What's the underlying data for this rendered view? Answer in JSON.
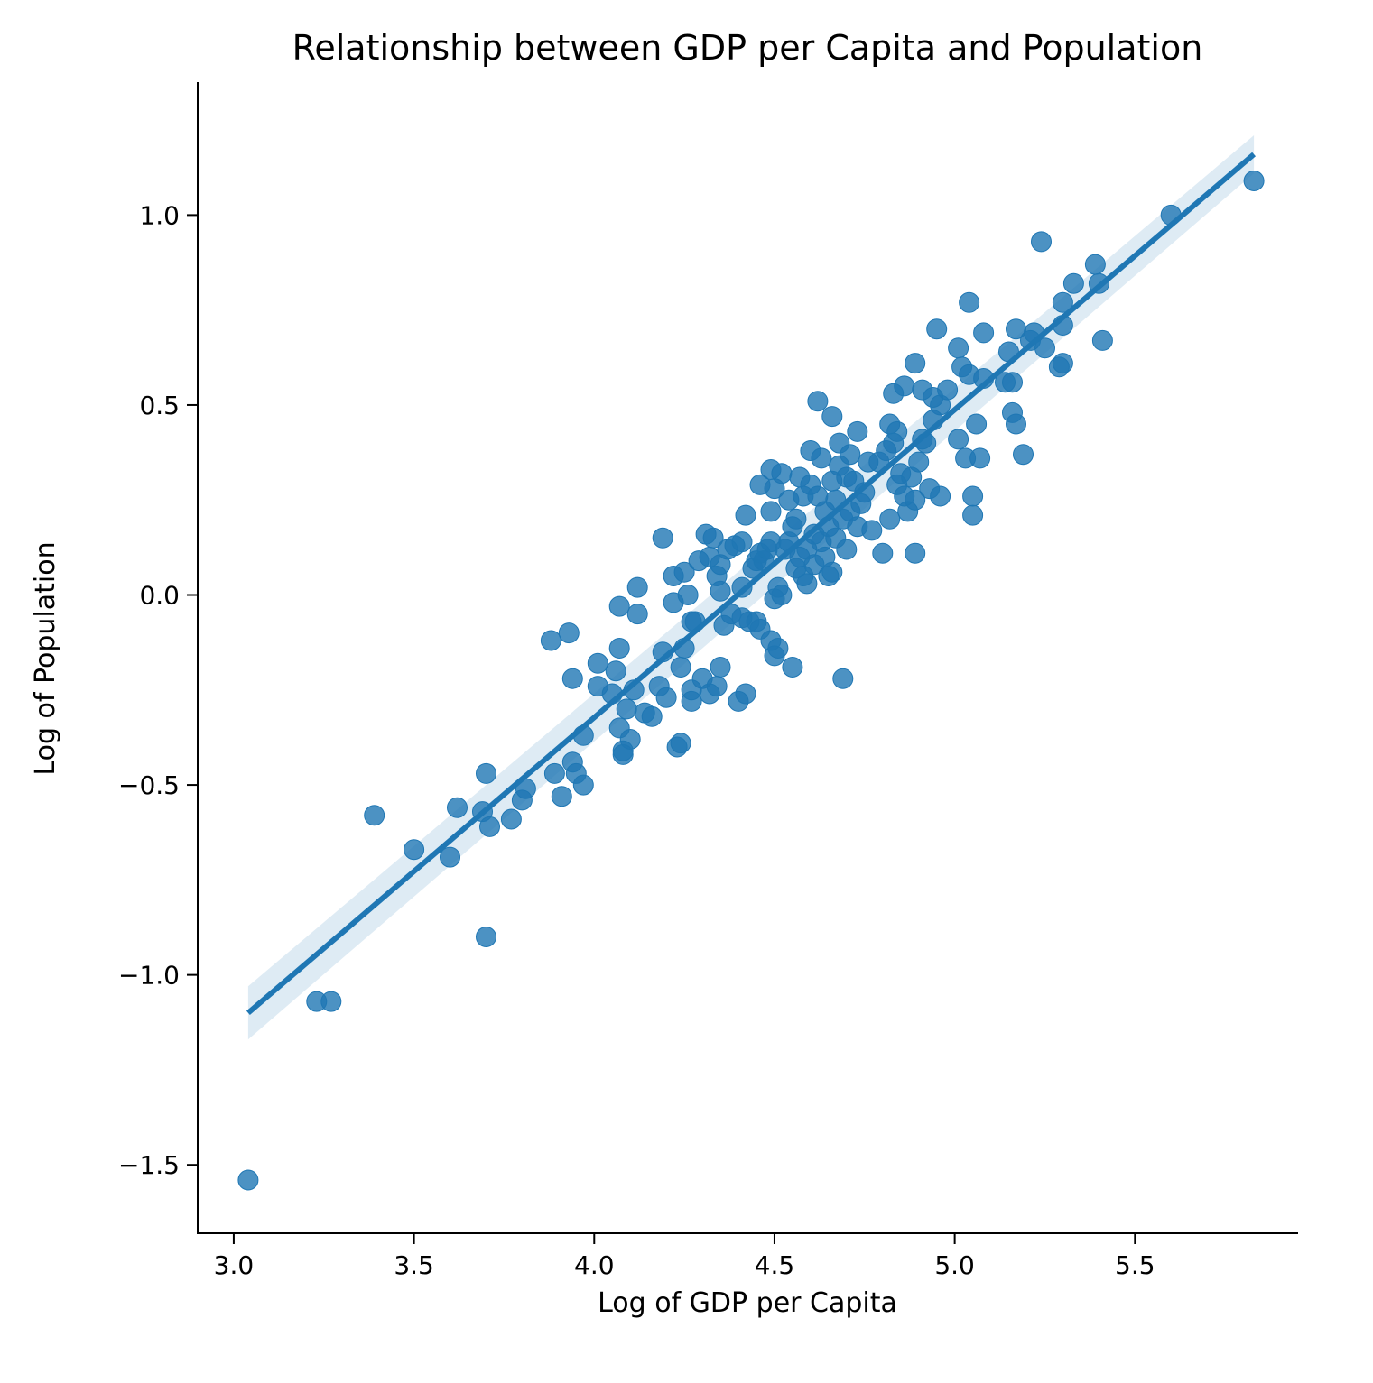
{
  "chart_data": {
    "type": "scatter",
    "title": "Relationship between GDP per Capita and Population",
    "xlabel": "Log of GDP per Capita",
    "ylabel": "Log of Population",
    "xlim": [
      2.9,
      5.95
    ],
    "ylim": [
      -1.68,
      1.35
    ],
    "x_ticks": [
      3.0,
      3.5,
      4.0,
      4.5,
      5.0,
      5.5
    ],
    "x_tick_labels": [
      "3.0",
      "3.5",
      "4.0",
      "4.5",
      "5.0",
      "5.5"
    ],
    "y_ticks": [
      -1.5,
      -1.0,
      -0.5,
      0.0,
      0.5,
      1.0
    ],
    "y_tick_labels": [
      "−1.5",
      "−1.0",
      "−0.5",
      "0.0",
      "0.5",
      "1.0"
    ],
    "grid": false,
    "legend": "none",
    "colors": {
      "points": "#1f77b4",
      "line": "#1f77b4",
      "band": "#1f77b4"
    },
    "regression": {
      "x_range": [
        3.04,
        5.83
      ],
      "y_range": [
        -1.1,
        1.16
      ],
      "ci_upper": [
        -1.03,
        1.21
      ],
      "ci_lower": [
        -1.17,
        1.11
      ]
    },
    "points": [
      [
        3.04,
        -1.54
      ],
      [
        3.23,
        -1.07
      ],
      [
        3.27,
        -1.07
      ],
      [
        3.39,
        -0.58
      ],
      [
        3.5,
        -0.67
      ],
      [
        3.6,
        -0.69
      ],
      [
        3.62,
        -0.56
      ],
      [
        3.69,
        -0.57
      ],
      [
        3.7,
        -0.47
      ],
      [
        3.7,
        -0.9
      ],
      [
        3.71,
        -0.61
      ],
      [
        3.77,
        -0.59
      ],
      [
        3.8,
        -0.54
      ],
      [
        3.81,
        -0.51
      ],
      [
        3.88,
        -0.12
      ],
      [
        3.89,
        -0.47
      ],
      [
        3.91,
        -0.53
      ],
      [
        3.93,
        -0.1
      ],
      [
        3.94,
        -0.22
      ],
      [
        3.94,
        -0.44
      ],
      [
        3.95,
        -0.47
      ],
      [
        3.97,
        -0.5
      ],
      [
        3.97,
        -0.37
      ],
      [
        4.01,
        -0.18
      ],
      [
        4.01,
        -0.24
      ],
      [
        4.05,
        -0.26
      ],
      [
        4.06,
        -0.2
      ],
      [
        4.07,
        -0.03
      ],
      [
        4.07,
        -0.14
      ],
      [
        4.07,
        -0.35
      ],
      [
        4.08,
        -0.41
      ],
      [
        4.08,
        -0.42
      ],
      [
        4.09,
        -0.3
      ],
      [
        4.1,
        -0.38
      ],
      [
        4.11,
        -0.25
      ],
      [
        4.12,
        -0.05
      ],
      [
        4.12,
        0.02
      ],
      [
        4.14,
        -0.31
      ],
      [
        4.16,
        -0.32
      ],
      [
        4.18,
        -0.24
      ],
      [
        4.19,
        -0.15
      ],
      [
        4.19,
        0.15
      ],
      [
        4.2,
        -0.27
      ],
      [
        4.22,
        0.05
      ],
      [
        4.22,
        -0.02
      ],
      [
        4.23,
        -0.4
      ],
      [
        4.24,
        -0.39
      ],
      [
        4.24,
        -0.19
      ],
      [
        4.25,
        -0.14
      ],
      [
        4.25,
        0.06
      ],
      [
        4.26,
        0.0
      ],
      [
        4.27,
        -0.28
      ],
      [
        4.27,
        -0.25
      ],
      [
        4.27,
        -0.07
      ],
      [
        4.28,
        -0.07
      ],
      [
        4.29,
        0.09
      ],
      [
        4.3,
        -0.22
      ],
      [
        4.31,
        0.16
      ],
      [
        4.32,
        0.1
      ],
      [
        4.32,
        -0.26
      ],
      [
        4.33,
        0.15
      ],
      [
        4.34,
        0.05
      ],
      [
        4.34,
        -0.24
      ],
      [
        4.35,
        -0.19
      ],
      [
        4.35,
        0.08
      ],
      [
        4.35,
        0.01
      ],
      [
        4.36,
        -0.08
      ],
      [
        4.37,
        0.12
      ],
      [
        4.38,
        -0.05
      ],
      [
        4.39,
        0.13
      ],
      [
        4.4,
        -0.28
      ],
      [
        4.41,
        -0.06
      ],
      [
        4.41,
        0.02
      ],
      [
        4.41,
        0.14
      ],
      [
        4.42,
        0.21
      ],
      [
        4.42,
        -0.26
      ],
      [
        4.43,
        -0.07
      ],
      [
        4.44,
        0.07
      ],
      [
        4.45,
        0.09
      ],
      [
        4.45,
        -0.07
      ],
      [
        4.46,
        0.11
      ],
      [
        4.46,
        -0.09
      ],
      [
        4.46,
        0.29
      ],
      [
        4.47,
        0.09
      ],
      [
        4.48,
        0.12
      ],
      [
        4.49,
        0.33
      ],
      [
        4.49,
        0.22
      ],
      [
        4.49,
        0.14
      ],
      [
        4.49,
        -0.12
      ],
      [
        4.5,
        -0.01
      ],
      [
        4.5,
        -0.16
      ],
      [
        4.5,
        0.28
      ],
      [
        4.51,
        0.02
      ],
      [
        4.51,
        -0.14
      ],
      [
        4.52,
        0.32
      ],
      [
        4.52,
        0.0
      ],
      [
        4.53,
        0.12
      ],
      [
        4.54,
        0.25
      ],
      [
        4.54,
        0.14
      ],
      [
        4.55,
        -0.19
      ],
      [
        4.55,
        0.18
      ],
      [
        4.56,
        0.07
      ],
      [
        4.56,
        0.2
      ],
      [
        4.57,
        0.1
      ],
      [
        4.57,
        0.31
      ],
      [
        4.58,
        0.26
      ],
      [
        4.58,
        0.05
      ],
      [
        4.59,
        0.03
      ],
      [
        4.59,
        0.12
      ],
      [
        4.6,
        0.38
      ],
      [
        4.6,
        0.29
      ],
      [
        4.61,
        0.16
      ],
      [
        4.61,
        0.08
      ],
      [
        4.62,
        0.51
      ],
      [
        4.62,
        0.26
      ],
      [
        4.63,
        0.14
      ],
      [
        4.63,
        0.36
      ],
      [
        4.64,
        0.1
      ],
      [
        4.64,
        0.22
      ],
      [
        4.65,
        0.05
      ],
      [
        4.65,
        0.18
      ],
      [
        4.66,
        0.47
      ],
      [
        4.66,
        0.3
      ],
      [
        4.66,
        0.06
      ],
      [
        4.67,
        0.25
      ],
      [
        4.67,
        0.15
      ],
      [
        4.68,
        0.4
      ],
      [
        4.68,
        0.34
      ],
      [
        4.69,
        0.2
      ],
      [
        4.69,
        -0.22
      ],
      [
        4.7,
        0.31
      ],
      [
        4.7,
        0.12
      ],
      [
        4.71,
        0.37
      ],
      [
        4.71,
        0.22
      ],
      [
        4.72,
        0.3
      ],
      [
        4.73,
        0.43
      ],
      [
        4.73,
        0.18
      ],
      [
        4.74,
        0.24
      ],
      [
        4.75,
        0.27
      ],
      [
        4.76,
        0.35
      ],
      [
        4.77,
        0.17
      ],
      [
        4.79,
        0.35
      ],
      [
        4.8,
        0.11
      ],
      [
        4.81,
        0.38
      ],
      [
        4.82,
        0.2
      ],
      [
        4.82,
        0.45
      ],
      [
        4.83,
        0.53
      ],
      [
        4.83,
        0.4
      ],
      [
        4.84,
        0.43
      ],
      [
        4.84,
        0.29
      ],
      [
        4.85,
        0.32
      ],
      [
        4.86,
        0.55
      ],
      [
        4.86,
        0.26
      ],
      [
        4.87,
        0.22
      ],
      [
        4.88,
        0.31
      ],
      [
        4.89,
        0.61
      ],
      [
        4.89,
        0.11
      ],
      [
        4.89,
        0.25
      ],
      [
        4.9,
        0.35
      ],
      [
        4.91,
        0.54
      ],
      [
        4.91,
        0.41
      ],
      [
        4.92,
        0.4
      ],
      [
        4.93,
        0.28
      ],
      [
        4.94,
        0.46
      ],
      [
        4.94,
        0.52
      ],
      [
        4.95,
        0.7
      ],
      [
        4.96,
        0.5
      ],
      [
        4.96,
        0.26
      ],
      [
        4.98,
        0.54
      ],
      [
        5.01,
        0.41
      ],
      [
        5.01,
        0.65
      ],
      [
        5.02,
        0.6
      ],
      [
        5.03,
        0.36
      ],
      [
        5.04,
        0.58
      ],
      [
        5.04,
        0.77
      ],
      [
        5.05,
        0.26
      ],
      [
        5.05,
        0.21
      ],
      [
        5.06,
        0.45
      ],
      [
        5.07,
        0.36
      ],
      [
        5.08,
        0.57
      ],
      [
        5.08,
        0.69
      ],
      [
        5.14,
        0.56
      ],
      [
        5.15,
        0.64
      ],
      [
        5.16,
        0.56
      ],
      [
        5.16,
        0.48
      ],
      [
        5.17,
        0.45
      ],
      [
        5.17,
        0.7
      ],
      [
        5.19,
        0.37
      ],
      [
        5.21,
        0.67
      ],
      [
        5.22,
        0.69
      ],
      [
        5.24,
        0.93
      ],
      [
        5.25,
        0.65
      ],
      [
        5.29,
        0.6
      ],
      [
        5.3,
        0.61
      ],
      [
        5.3,
        0.71
      ],
      [
        5.3,
        0.77
      ],
      [
        5.33,
        0.82
      ],
      [
        5.39,
        0.87
      ],
      [
        5.4,
        0.82
      ],
      [
        5.41,
        0.67
      ],
      [
        5.6,
        1.0
      ],
      [
        5.83,
        1.09
      ]
    ]
  }
}
